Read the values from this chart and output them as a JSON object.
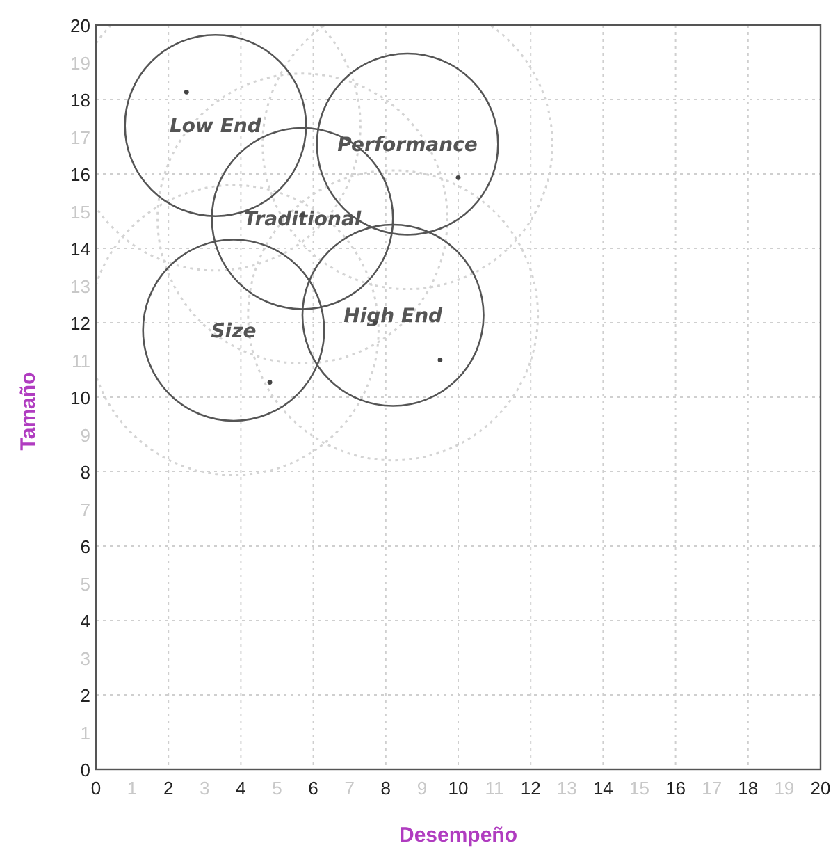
{
  "chart_data": {
    "type": "scatter",
    "xlabel": "Desempeño",
    "ylabel": "Tamaño",
    "xlim": [
      0,
      20
    ],
    "ylim": [
      0,
      20
    ],
    "xticks": [
      0,
      1,
      2,
      3,
      4,
      5,
      6,
      7,
      8,
      9,
      10,
      11,
      12,
      13,
      14,
      15,
      16,
      17,
      18,
      19,
      20
    ],
    "yticks": [
      0,
      1,
      2,
      3,
      4,
      5,
      6,
      7,
      8,
      9,
      10,
      11,
      12,
      13,
      14,
      15,
      16,
      17,
      18,
      19,
      20
    ],
    "grid": true,
    "legend": false,
    "series": [
      {
        "type": "bubble",
        "name": "Low End",
        "color": "#555555",
        "line_style": "solid",
        "x": [
          3.3
        ],
        "values": [
          17.3
        ],
        "sizes": [
          1
        ]
      },
      {
        "type": "bubble",
        "name": "Performance",
        "color": "#555555",
        "line_style": "solid",
        "x": [
          8.6
        ],
        "values": [
          16.8
        ],
        "sizes": [
          1
        ]
      },
      {
        "type": "bubble",
        "name": "Traditional",
        "color": "#555555",
        "line_style": "solid",
        "x": [
          5.7
        ],
        "values": [
          14.8
        ],
        "sizes": [
          1
        ]
      },
      {
        "type": "bubble",
        "name": "Size",
        "color": "#555555",
        "line_style": "solid",
        "x": [
          3.8
        ],
        "values": [
          11.8
        ],
        "sizes": [
          1
        ]
      },
      {
        "type": "bubble",
        "name": "High End",
        "color": "#555555",
        "line_style": "solid",
        "x": [
          8.2
        ],
        "values": [
          12.2
        ],
        "sizes": [
          1
        ]
      },
      {
        "color": "#444444",
        "marker": "circle",
        "x": [
          2.5,
          5.7,
          10.0,
          4.8,
          9.5,
          7.7
        ],
        "values": [
          18.2,
          14.9,
          15.9,
          10.4,
          11.0,
          12.0
        ]
      }
    ]
  }
}
